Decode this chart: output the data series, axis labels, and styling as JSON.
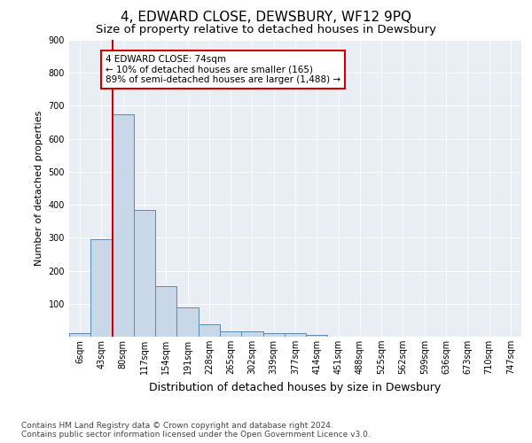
{
  "title": "4, EDWARD CLOSE, DEWSBURY, WF12 9PQ",
  "subtitle": "Size of property relative to detached houses in Dewsbury",
  "xlabel": "Distribution of detached houses by size in Dewsbury",
  "ylabel": "Number of detached properties",
  "bin_labels": [
    "6sqm",
    "43sqm",
    "80sqm",
    "117sqm",
    "154sqm",
    "191sqm",
    "228sqm",
    "265sqm",
    "302sqm",
    "339sqm",
    "377sqm",
    "414sqm",
    "451sqm",
    "488sqm",
    "525sqm",
    "562sqm",
    "599sqm",
    "636sqm",
    "673sqm",
    "710sqm",
    "747sqm"
  ],
  "bar_values": [
    10,
    295,
    675,
    385,
    152,
    90,
    38,
    15,
    15,
    10,
    10,
    5,
    0,
    0,
    0,
    0,
    0,
    0,
    0,
    0,
    0
  ],
  "bar_color": "#c8d8e8",
  "bar_edge_color": "#5a8ab0",
  "red_line_x": 2.0,
  "annotation_text": "4 EDWARD CLOSE: 74sqm\n← 10% of detached houses are smaller (165)\n89% of semi-detached houses are larger (1,488) →",
  "annotation_box_color": "#ffffff",
  "annotation_box_edge_color": "#cc0000",
  "vline_color": "#cc0000",
  "ylim": [
    0,
    900
  ],
  "yticks": [
    100,
    200,
    300,
    400,
    500,
    600,
    700,
    800,
    900
  ],
  "background_color": "#e8eef4",
  "footer_line1": "Contains HM Land Registry data © Crown copyright and database right 2024.",
  "footer_line2": "Contains public sector information licensed under the Open Government Licence v3.0.",
  "title_fontsize": 11,
  "subtitle_fontsize": 9.5,
  "xlabel_fontsize": 9,
  "ylabel_fontsize": 8,
  "tick_fontsize": 7,
  "footer_fontsize": 6.5,
  "annotation_fontsize": 7.5
}
